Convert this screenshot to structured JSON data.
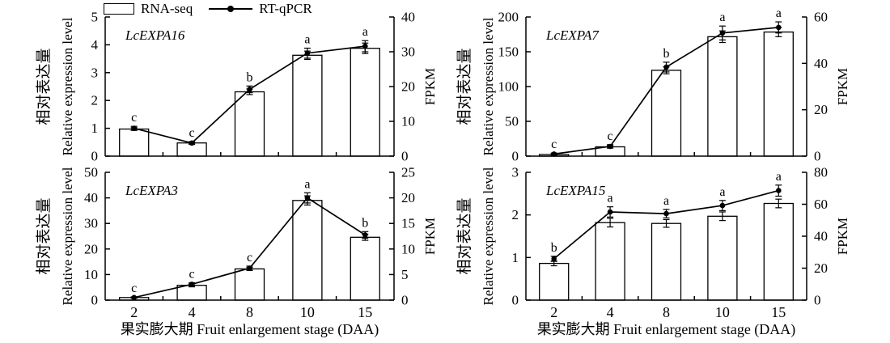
{
  "figure": {
    "legend": {
      "rna_seq": "RNA-seq",
      "rt_qpcr": "RT-qPCR"
    },
    "axes_labels": {
      "y_left_cn": "相对表达量",
      "y_left_en": "Relative expression level",
      "y_right": "FPKM",
      "x_title": "果实膨大期 Fruit enlargement stage (DAA)"
    }
  },
  "chart_data": [
    {
      "type": "bar+line",
      "title": "LcEXPA16",
      "categories": [
        "2",
        "4",
        "8",
        "10",
        "15"
      ],
      "xlabel": "果实膨大期 Fruit enlargement stage (DAA)",
      "left_axis": {
        "label": "相对表达量 Relative expression level",
        "min": 0,
        "max": 5,
        "ticks": [
          0,
          1,
          2,
          3,
          4,
          5
        ]
      },
      "right_axis": {
        "label": "FPKM",
        "min": 0,
        "max": 40,
        "ticks": [
          0,
          10,
          20,
          30,
          40
        ]
      },
      "series": [
        {
          "name": "RNA-seq",
          "type": "bar",
          "axis": "right",
          "values": [
            7.8,
            3.8,
            18.5,
            29,
            31
          ],
          "errors": [
            0.4,
            0.3,
            0.8,
            1.2,
            1.5
          ]
        },
        {
          "name": "RT-qPCR",
          "type": "line",
          "axis": "left",
          "values": [
            1.0,
            0.47,
            2.4,
            3.7,
            3.95
          ],
          "errors": [
            0.07,
            0.05,
            0.12,
            0.18,
            0.2
          ]
        }
      ],
      "sig_letters": [
        "c",
        "c",
        "b",
        "a",
        "a"
      ]
    },
    {
      "type": "bar+line",
      "title": "LcEXPA7",
      "categories": [
        "2",
        "4",
        "8",
        "10",
        "15"
      ],
      "xlabel": "果实膨大期 Fruit enlargement stage (DAA)",
      "left_axis": {
        "label": "相对表达量 Relative expression level",
        "min": 0,
        "max": 200,
        "ticks": [
          0,
          50,
          100,
          150,
          200
        ]
      },
      "right_axis": {
        "label": "FPKM",
        "min": 0,
        "max": 60,
        "ticks": [
          0,
          20,
          40,
          60
        ]
      },
      "series": [
        {
          "name": "RNA-seq",
          "type": "bar",
          "axis": "right",
          "values": [
            0.7,
            4,
            37,
            51.5,
            53.5
          ],
          "errors": [
            0.2,
            0.5,
            1.5,
            2.5,
            2
          ]
        },
        {
          "name": "RT-qPCR",
          "type": "line",
          "axis": "left",
          "values": [
            3,
            14,
            128,
            177,
            185
          ],
          "errors": [
            1.5,
            2.5,
            7,
            10,
            8
          ]
        }
      ],
      "sig_letters": [
        "c",
        "c",
        "b",
        "a",
        "a"
      ]
    },
    {
      "type": "bar+line",
      "title": "LcEXPA3",
      "categories": [
        "2",
        "4",
        "8",
        "10",
        "15"
      ],
      "xlabel": "果实膨大期 Fruit enlargement stage (DAA)",
      "left_axis": {
        "label": "相对表达量 Relative expression level",
        "min": 0,
        "max": 50,
        "ticks": [
          0,
          10,
          20,
          30,
          40,
          50
        ]
      },
      "right_axis": {
        "label": "FPKM",
        "min": 0,
        "max": 25,
        "ticks": [
          0,
          5,
          10,
          15,
          20,
          25
        ]
      },
      "series": [
        {
          "name": "RNA-seq",
          "type": "bar",
          "axis": "right",
          "values": [
            0.5,
            2.9,
            6.1,
            19.5,
            12.3
          ],
          "errors": [
            0.1,
            0.3,
            0.3,
            0.9,
            0.6
          ]
        },
        {
          "name": "RT-qPCR",
          "type": "line",
          "axis": "left",
          "values": [
            1.0,
            6.2,
            12.5,
            40,
            25.5
          ],
          "errors": [
            0.3,
            0.6,
            0.8,
            2,
            1.3
          ]
        }
      ],
      "sig_letters": [
        "c",
        "c",
        "c",
        "a",
        "b"
      ]
    },
    {
      "type": "bar+line",
      "title": "LcEXPA15",
      "categories": [
        "2",
        "4",
        "8",
        "10",
        "15"
      ],
      "xlabel": "果实膨大期 Fruit enlargement stage (DAA)",
      "left_axis": {
        "label": "相对表达量 Relative expression level",
        "min": 0,
        "max": 3,
        "ticks": [
          0,
          1,
          2,
          3
        ]
      },
      "right_axis": {
        "label": "FPKM",
        "min": 0,
        "max": 80,
        "ticks": [
          0,
          20,
          40,
          60,
          80
        ]
      },
      "series": [
        {
          "name": "RNA-seq",
          "type": "bar",
          "axis": "right",
          "values": [
            23,
            48.5,
            48,
            52.5,
            60.5
          ],
          "errors": [
            1.5,
            2.7,
            2.4,
            2.7,
            2.7
          ]
        },
        {
          "name": "RT-qPCR",
          "type": "line",
          "axis": "left",
          "values": [
            0.97,
            2.07,
            2.03,
            2.22,
            2.57
          ],
          "errors": [
            0.06,
            0.12,
            0.1,
            0.12,
            0.13
          ]
        }
      ],
      "sig_letters": [
        "b",
        "a",
        "a",
        "a",
        "a"
      ]
    }
  ],
  "style": {
    "ink": "#000000",
    "bar_fill": "#ffffff",
    "background": "#ffffff"
  }
}
